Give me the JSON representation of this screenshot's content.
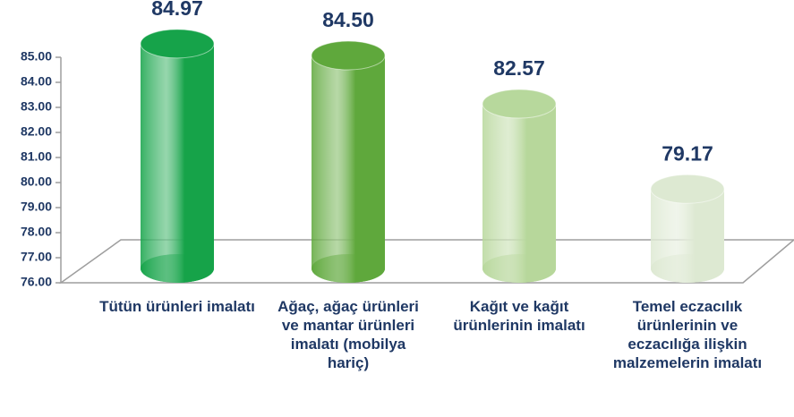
{
  "chart_data": {
    "type": "bar",
    "categories": [
      "Tütün ürünleri imalatı",
      "Ağaç, ağaç ürünleri ve mantar ürünleri imalatı (mobilya hariç)",
      "Kağıt ve kağıt ürünlerinin imalatı",
      "Temel eczacılık ürünlerinin ve eczacılığa ilişkin malzemelerin imalatı"
    ],
    "values": [
      84.97,
      84.5,
      82.57,
      79.17
    ],
    "value_labels": [
      "84.97",
      "84.50",
      "82.57",
      "79.17"
    ],
    "colors": [
      "#16a34a",
      "#5fa83c",
      "#b7d89c",
      "#dde9d2"
    ],
    "ylim": [
      76,
      85
    ],
    "yticks": [
      {
        "value": 76,
        "label": "76.00"
      },
      {
        "value": 77,
        "label": "77.00"
      },
      {
        "value": 78,
        "label": "78.00"
      },
      {
        "value": 79,
        "label": "79.00"
      },
      {
        "value": 80,
        "label": "80.00"
      },
      {
        "value": 81,
        "label": "81.00"
      },
      {
        "value": 82,
        "label": "82.00"
      },
      {
        "value": 83,
        "label": "83.00"
      },
      {
        "value": 84,
        "label": "84.00"
      },
      {
        "value": 85,
        "label": "85.00"
      }
    ],
    "grid": false
  }
}
